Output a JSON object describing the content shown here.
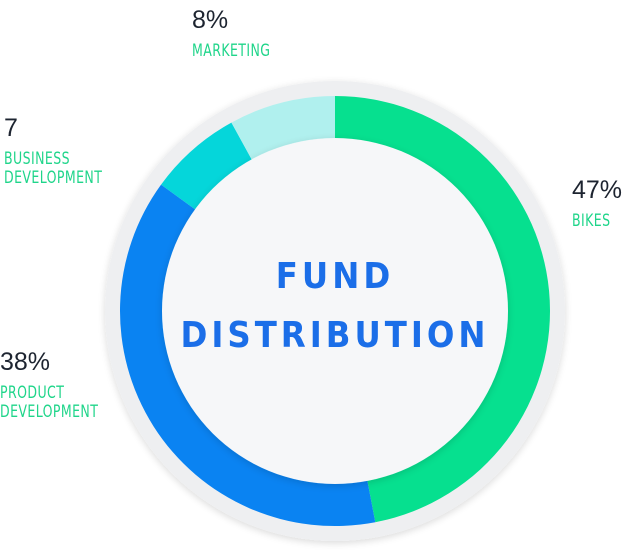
{
  "chart_data": {
    "type": "pie",
    "title": "FUND DISTRIBUTION",
    "title_line1": "FUND",
    "title_line2": "DISTRIBUTION",
    "slices": [
      {
        "label": "BIKES",
        "display_value": "47%",
        "value": 47,
        "color": "#06e08f"
      },
      {
        "label": "PRODUCT DEVELOPMENT",
        "display_value": "38%",
        "value": 38,
        "color": "#0a83f2"
      },
      {
        "label": "BUSINESS DEVELOPMENT",
        "display_value": "7",
        "value": 7,
        "color": "#05d6da"
      },
      {
        "label": "MARKETING",
        "display_value": "8%",
        "value": 8,
        "color": "#b0f0ee"
      }
    ]
  },
  "labels": {
    "marketing": {
      "value": "8%",
      "line1": "MARKETING"
    },
    "business": {
      "value": "7",
      "line1": "BUSINESS",
      "line2": "DEVELOPMENT"
    },
    "bikes": {
      "value": "47%",
      "line1": "BIKES"
    },
    "product": {
      "value": "38%",
      "line1": "PRODUCT",
      "line2": "DEVELOPMENT"
    }
  },
  "colors": {
    "inner_fill": "#f6f7f9",
    "outer_halo": "#eeeff1",
    "label_green": "#1fd58a",
    "title_blue": "#1b6ee8"
  }
}
